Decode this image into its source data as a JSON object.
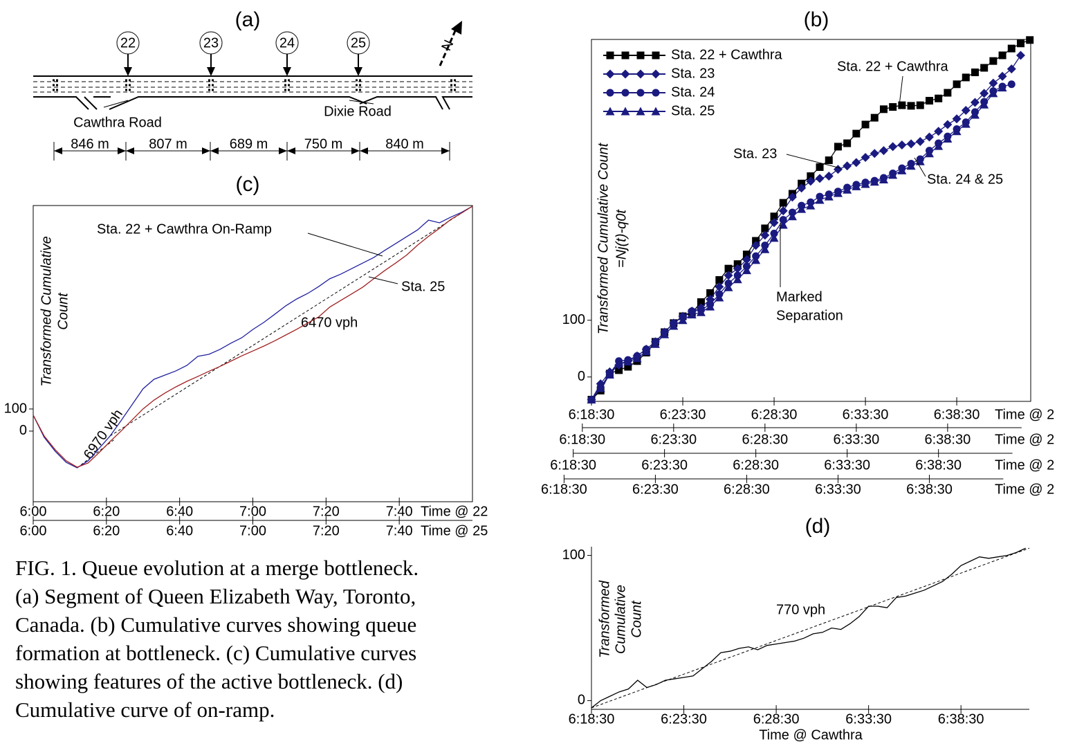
{
  "diagram": {
    "title": "(a)",
    "stations": [
      "22",
      "23",
      "24",
      "25"
    ],
    "north": "N",
    "roads": [
      "Cawthra Road",
      "Dixie Road"
    ],
    "distances": [
      "846 m",
      "807 m",
      "689 m",
      "750 m",
      "840 m"
    ]
  },
  "chart_data": [
    {
      "type": "line",
      "title": "(b)",
      "ylabel": [
        "Transformed Cumulative Count",
        "=Nj(t)-q0t"
      ],
      "xlim": [
        18.5,
        42.55
      ],
      "ylim": [
        -43,
        595
      ],
      "yticks": [
        0,
        100
      ],
      "legend": "upper left",
      "x_axes": [
        {
          "label": "Time @ 2",
          "ticks": [
            {
              "value": 18.5,
              "label": "6:18:30"
            },
            {
              "value": 23.5,
              "label": "6:23:30"
            },
            {
              "value": 28.5,
              "label": "6:28:30"
            },
            {
              "value": 33.5,
              "label": "6:33:30"
            },
            {
              "value": 38.5,
              "label": "6:38:30"
            }
          ]
        },
        {
          "label": "Time @ 2",
          "ticks": [
            {
              "value": 18.0,
              "label": "6:18:30"
            },
            {
              "value": 23.0,
              "label": "6:23:30"
            },
            {
              "value": 28.0,
              "label": "6:28:30"
            },
            {
              "value": 33.0,
              "label": "6:33:30"
            },
            {
              "value": 38.0,
              "label": "6:38:30"
            }
          ]
        },
        {
          "label": "Time @ 2",
          "ticks": [
            {
              "value": 17.5,
              "label": "6:18:30"
            },
            {
              "value": 22.5,
              "label": "6:23:30"
            },
            {
              "value": 27.5,
              "label": "6:28:30"
            },
            {
              "value": 32.5,
              "label": "6:33:30"
            },
            {
              "value": 37.5,
              "label": "6:38:30"
            }
          ]
        },
        {
          "label": "Time @ 2",
          "ticks": [
            {
              "value": 17.0,
              "label": "6:18:30"
            },
            {
              "value": 22.0,
              "label": "6:23:30"
            },
            {
              "value": 27.0,
              "label": "6:28:30"
            },
            {
              "value": 32.0,
              "label": "6:33:30"
            },
            {
              "value": 37.0,
              "label": "6:38:30"
            }
          ]
        }
      ],
      "series": [
        {
          "name": "Sta. 22 + Cawthra",
          "color": "#000000",
          "marker": "square",
          "x": [
            18.5,
            19,
            19.5,
            20,
            20.5,
            21,
            21.5,
            22,
            22.5,
            23,
            23.5,
            24,
            24.5,
            25,
            25.5,
            26,
            26.5,
            27,
            27.5,
            28,
            28.5,
            29,
            29.5,
            30,
            30.5,
            31,
            31.5,
            32,
            32.5,
            33,
            33.5,
            34,
            34.5,
            35,
            35.5,
            36,
            36.5,
            37,
            37.5,
            38,
            38.5,
            39,
            39.5,
            40,
            40.5,
            41,
            41.5,
            42,
            42.5
          ],
          "values": [
            -40,
            -24,
            6,
            12,
            18,
            28,
            43,
            62,
            79,
            95,
            107,
            113,
            132,
            148,
            171,
            191,
            199,
            216,
            240,
            262,
            283,
            307,
            323,
            341,
            354,
            370,
            382,
            406,
            412,
            429,
            445,
            457,
            472,
            476,
            479,
            478,
            479,
            487,
            491,
            501,
            516,
            528,
            537,
            545,
            557,
            567,
            579,
            588,
            594
          ]
        },
        {
          "name": "Sta. 23",
          "color": "#1a1a80",
          "marker": "diamond",
          "x": [
            18.5,
            19,
            19.5,
            20,
            20.5,
            21,
            21.5,
            22,
            22.5,
            23,
            23.5,
            24,
            24.5,
            25,
            25.5,
            26,
            26.5,
            27,
            27.5,
            28,
            28.5,
            29,
            29.5,
            30,
            30.5,
            31,
            31.5,
            32,
            32.5,
            33,
            33.5,
            34,
            34.5,
            35,
            35.5,
            36,
            36.5,
            37,
            37.5,
            38,
            38.5,
            39,
            39.5,
            40,
            40.5,
            41,
            41.5,
            42
          ],
          "values": [
            -40,
            -12,
            9,
            21,
            28,
            37,
            49,
            62,
            79,
            95,
            107,
            116,
            122,
            137,
            159,
            179,
            191,
            207,
            232,
            250,
            272,
            293,
            317,
            333,
            345,
            350,
            354,
            366,
            372,
            378,
            387,
            394,
            399,
            406,
            409,
            411,
            415,
            423,
            433,
            445,
            455,
            470,
            484,
            500,
            518,
            530,
            543,
            567
          ]
        },
        {
          "name": "Sta. 24",
          "color": "#1a1a80",
          "marker": "circle",
          "x": [
            18.5,
            19,
            19.5,
            20,
            20.5,
            21,
            21.5,
            22,
            22.5,
            23,
            23.5,
            24,
            24.5,
            25,
            25.5,
            26,
            26.5,
            27,
            27.5,
            28,
            28.5,
            29,
            29.5,
            30,
            30.5,
            31,
            31.5,
            32,
            32.5,
            33,
            33.5,
            34,
            34.5,
            35,
            35.5,
            36,
            36.5,
            37,
            37.5,
            38,
            38.5,
            39,
            39.5,
            40,
            40.5,
            41,
            41.5
          ],
          "values": [
            -40,
            -18,
            6,
            28,
            30,
            37,
            49,
            62,
            79,
            95,
            106,
            116,
            118,
            128,
            146,
            165,
            179,
            195,
            213,
            232,
            253,
            277,
            290,
            302,
            308,
            318,
            322,
            327,
            334,
            339,
            343,
            346,
            351,
            359,
            368,
            376,
            384,
            399,
            412,
            424,
            437,
            449,
            467,
            485,
            504,
            512,
            516
          ]
        },
        {
          "name": "Sta. 25",
          "color": "#1a1a80",
          "marker": "triangle",
          "x": [
            18.5,
            19,
            19.5,
            20,
            20.5,
            21,
            21.5,
            22,
            22.5,
            23,
            23.5,
            24,
            24.5,
            25,
            25.5,
            26,
            26.5,
            27,
            27.5,
            28,
            28.5,
            29,
            29.5,
            30,
            30.5,
            31,
            31.5,
            32,
            32.5,
            33,
            33.5,
            34,
            34.5,
            35,
            35.5,
            36,
            36.5,
            37,
            37.5,
            38,
            38.5,
            39,
            39.5,
            40,
            40.5,
            41
          ],
          "values": [
            -40,
            -20,
            4,
            24,
            27,
            33,
            45,
            58,
            75,
            90,
            100,
            110,
            114,
            124,
            140,
            158,
            172,
            188,
            206,
            225,
            245,
            268,
            283,
            296,
            302,
            312,
            318,
            324,
            330,
            336,
            340,
            344,
            348,
            356,
            364,
            372,
            380,
            394,
            407,
            420,
            433,
            446,
            462,
            480,
            500,
            510
          ]
        }
      ],
      "annotations": [
        [
          "Sta. 22 + Cawthra"
        ],
        [
          "Sta. 23"
        ],
        [
          "Sta. 24 & 25"
        ],
        [
          "Marked",
          "Separation"
        ]
      ]
    },
    {
      "type": "line",
      "title": "(c)",
      "ylabel": [
        "Transformed Cumulative",
        "Count"
      ],
      "xlim": [
        0,
        120
      ],
      "ylim": [
        -319,
        1019
      ],
      "yticks": [
        0,
        100
      ],
      "x_axes": [
        {
          "label": "Time @ 22",
          "ticks": [
            {
              "value": 0,
              "label": "6:00"
            },
            {
              "value": 20,
              "label": "6:20"
            },
            {
              "value": 40,
              "label": "6:40"
            },
            {
              "value": 60,
              "label": "7:00"
            },
            {
              "value": 80,
              "label": "7:20"
            },
            {
              "value": 100,
              "label": "7:40"
            }
          ]
        },
        {
          "label": "Time @ 25",
          "ticks": [
            {
              "value": 0,
              "label": "6:00"
            },
            {
              "value": 20,
              "label": "6:20"
            },
            {
              "value": 40,
              "label": "6:40"
            },
            {
              "value": 60,
              "label": "7:00"
            },
            {
              "value": 80,
              "label": "7:20"
            },
            {
              "value": 100,
              "label": "7:40"
            }
          ]
        }
      ],
      "series": [
        {
          "name": "Sta. 22 + Cawthra On-Ramp",
          "color": "#2020a0",
          "x": [
            0,
            3,
            6,
            9,
            12,
            15,
            18,
            21,
            24,
            27,
            30,
            33,
            36,
            39,
            42,
            45,
            48,
            51,
            54,
            57,
            60,
            63,
            66,
            69,
            72,
            75,
            78,
            81,
            84,
            87,
            90,
            93,
            96,
            99,
            102,
            105,
            108,
            111,
            114,
            117,
            120
          ],
          "values": [
            72,
            -28,
            -91,
            -141,
            -166,
            -134,
            -78,
            -22,
            47,
            119,
            191,
            234,
            253,
            272,
            297,
            338,
            347,
            369,
            397,
            422,
            459,
            491,
            528,
            566,
            597,
            622,
            653,
            688,
            709,
            734,
            759,
            784,
            816,
            847,
            878,
            909,
            953,
            941,
            966,
            988,
            1016
          ]
        },
        {
          "name": "Sta. 25",
          "color": "#a02020",
          "x": [
            0,
            3,
            6,
            9,
            12,
            15,
            18,
            21,
            24,
            27,
            30,
            33,
            36,
            39,
            42,
            45,
            48,
            51,
            54,
            57,
            60,
            63,
            66,
            69,
            72,
            75,
            78,
            81,
            84,
            87,
            90,
            93,
            96,
            99,
            102,
            105,
            108,
            111,
            114,
            117,
            120
          ],
          "values": [
            72,
            -22,
            -84,
            -134,
            -163,
            -144,
            -97,
            -47,
            0,
            50,
            100,
            140,
            172,
            200,
            225,
            247,
            270,
            292,
            316,
            340,
            362,
            384,
            408,
            434,
            460,
            488,
            516,
            560,
            590,
            620,
            650,
            688,
            725,
            759,
            795,
            840,
            880,
            916,
            955,
            985,
            1016
          ]
        }
      ],
      "reference_lines": [
        {
          "label": "6970 vph",
          "x": [
            12,
            22
          ],
          "values": [
            -166,
            -40
          ]
        },
        {
          "label": "6470 vph",
          "x": [
            21,
            120
          ],
          "values": [
            -22,
            1016
          ]
        }
      ]
    },
    {
      "type": "line",
      "title": "(d)",
      "ylabel": [
        "Transformed",
        "Cumulative",
        "Count"
      ],
      "xlim": [
        18.5,
        42.2
      ],
      "ylim": [
        -6,
        106
      ],
      "yticks": [
        0,
        100
      ],
      "x_axes": [
        {
          "label": "Time @ Cawthra",
          "ticks": [
            {
              "value": 18.5,
              "label": "6:18:30"
            },
            {
              "value": 23.5,
              "label": "6:23:30"
            },
            {
              "value": 28.5,
              "label": "6:28:30"
            },
            {
              "value": 33.5,
              "label": "6:33:30"
            },
            {
              "value": 38.5,
              "label": "6:38:30"
            }
          ]
        }
      ],
      "series": [
        {
          "name": "Cawthra",
          "color": "#000000",
          "x": [
            18.5,
            19,
            19.5,
            20,
            20.5,
            21,
            21.5,
            22,
            22.5,
            23,
            23.5,
            24,
            24.5,
            25,
            25.5,
            26,
            26.5,
            27,
            27.5,
            28,
            28.5,
            29,
            29.5,
            30,
            30.5,
            31,
            31.5,
            32,
            32.5,
            33,
            33.5,
            34,
            34.5,
            35,
            35.5,
            36,
            36.5,
            37,
            37.5,
            38,
            38.5,
            39,
            39.5,
            40,
            40.5,
            41,
            41.5,
            42
          ],
          "values": [
            -5,
            0,
            3,
            6,
            8,
            14,
            9,
            11,
            14,
            15,
            16,
            17,
            22,
            27,
            33,
            34,
            36,
            37,
            35,
            38,
            39,
            40,
            41,
            43,
            46,
            47,
            50,
            49,
            53,
            58,
            65,
            65,
            64,
            71,
            72,
            74,
            76,
            79,
            82,
            87,
            93,
            96,
            99,
            98,
            99,
            100,
            102,
            105
          ]
        }
      ],
      "reference_lines": [
        {
          "label": "770 vph",
          "x": [
            18.5,
            42.2
          ],
          "values": [
            -5,
            105
          ]
        }
      ]
    }
  ],
  "caption": [
    "FIG. 1. Queue evolution at a merge bottleneck.",
    "(a) Segment of Queen Elizabeth Way, Toronto,",
    "Canada.  (b) Cumulative curves showing queue",
    "formation at bottleneck.  (c) Cumulative curves",
    "showing features of the active bottleneck.  (d)",
    "Cumulative curve of on-ramp."
  ]
}
